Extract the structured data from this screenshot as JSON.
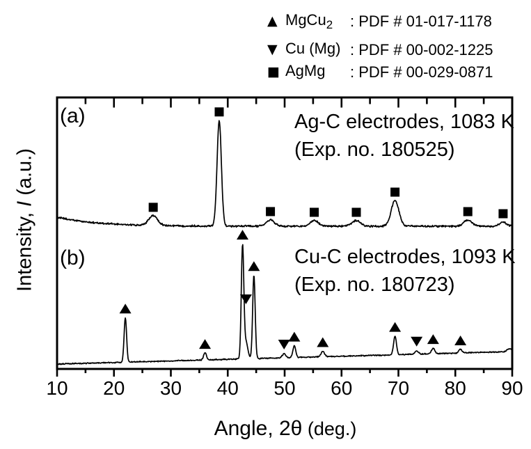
{
  "figure": {
    "background_color": "#ffffff",
    "ink_color": "#000000"
  },
  "legend": {
    "items": [
      {
        "icon": "triangle-up",
        "glyph": "▲",
        "phase": "MgCu",
        "phase_subscript": "2",
        "pdf_ref": ": PDF # 01-017-1178"
      },
      {
        "icon": "triangle-down",
        "glyph": "▼",
        "phase": "Cu (Mg)",
        "phase_subscript": "",
        "pdf_ref": ": PDF # 00-002-1225"
      },
      {
        "icon": "square",
        "glyph": "■",
        "phase": "AgMg",
        "phase_subscript": "",
        "pdf_ref": ": PDF # 00-029-0871"
      }
    ]
  },
  "chart_data": {
    "type": "line",
    "title": "",
    "xlabel": "Angle, 2θ (deg.)",
    "xlabel_parts": {
      "main": "Angle, 2θ",
      "unit": " (deg.)"
    },
    "ylabel": "Intensity, I (a.u.)",
    "ylabel_parts": {
      "prefix": "Intensity, ",
      "symbol_italic": "I",
      "suffix": " (a.u.)"
    },
    "xlim": [
      10,
      90
    ],
    "x_major_ticks": [
      10,
      20,
      30,
      40,
      50,
      60,
      70,
      80,
      90
    ],
    "x_minor_tick_step": 5,
    "y_ticks": "none (arbitrary units)",
    "grid": false,
    "series": [
      {
        "id": "a",
        "panel_label": "(a)",
        "annotation_line1": "Ag-C electrodes, 1083 K",
        "annotation_line2": "(Exp. no. 180525)",
        "phase": "AgMg",
        "marker": "square",
        "baseline_au": 205,
        "background_decay": {
          "amplitude_au": 13,
          "scale_deg": 7
        },
        "noise_au": 1.6,
        "peaks": [
          {
            "two_theta_deg": 26.9,
            "height_au": 14,
            "width_sigma_deg": 0.78,
            "marker": "square"
          },
          {
            "two_theta_deg": 38.5,
            "height_au": 152,
            "width_sigma_deg": 0.38,
            "marker": "square"
          },
          {
            "two_theta_deg": 47.5,
            "height_au": 9,
            "width_sigma_deg": 0.7,
            "marker": "square"
          },
          {
            "two_theta_deg": 55.2,
            "height_au": 8,
            "width_sigma_deg": 0.75,
            "marker": "square"
          },
          {
            "two_theta_deg": 62.6,
            "height_au": 8,
            "width_sigma_deg": 0.75,
            "marker": "square"
          },
          {
            "two_theta_deg": 69.4,
            "height_au": 37,
            "width_sigma_deg": 0.68,
            "marker": "square"
          },
          {
            "two_theta_deg": 82.2,
            "height_au": 9,
            "width_sigma_deg": 0.7,
            "marker": "square"
          },
          {
            "two_theta_deg": 88.4,
            "height_au": 6,
            "width_sigma_deg": 0.6,
            "marker": "square"
          }
        ]
      },
      {
        "id": "b",
        "panel_label": "(b)",
        "annotation_line1": "Cu-C electrodes, 1093 K",
        "annotation_line2": "(Exp. no. 180723)",
        "phase": "MgCu2, Cu (Mg)",
        "marker": "triangle-up",
        "baseline_start_au": 7,
        "baseline_end_au": 25,
        "noise_au": 1.0,
        "peaks": [
          {
            "two_theta_deg": 22.0,
            "height_au": 64,
            "width_sigma_deg": 0.22,
            "marker": "triangle-up"
          },
          {
            "two_theta_deg": 36.0,
            "height_au": 10,
            "width_sigma_deg": 0.25,
            "marker": "triangle-up"
          },
          {
            "two_theta_deg": 42.6,
            "height_au": 161,
            "width_sigma_deg": 0.22,
            "marker": "triangle-up"
          },
          {
            "two_theta_deg": 43.2,
            "height_au": 24,
            "width_sigma_deg": 0.33,
            "marker": "triangle-down",
            "marker_height_au": 100
          },
          {
            "two_theta_deg": 44.6,
            "height_au": 120,
            "width_sigma_deg": 0.22,
            "marker": "triangle-up"
          },
          {
            "two_theta_deg": 49.9,
            "height_au": 6,
            "width_sigma_deg": 0.3,
            "marker": "triangle-down"
          },
          {
            "two_theta_deg": 51.7,
            "height_au": 17,
            "width_sigma_deg": 0.25,
            "marker": "triangle-up"
          },
          {
            "two_theta_deg": 56.7,
            "height_au": 8,
            "width_sigma_deg": 0.3,
            "marker": "triangle-up"
          },
          {
            "two_theta_deg": 69.4,
            "height_au": 27,
            "width_sigma_deg": 0.25,
            "marker": "triangle-up"
          },
          {
            "two_theta_deg": 73.2,
            "height_au": 5,
            "width_sigma_deg": 0.3,
            "marker": "triangle-down"
          },
          {
            "two_theta_deg": 76.1,
            "height_au": 8,
            "width_sigma_deg": 0.28,
            "marker": "triangle-up"
          },
          {
            "two_theta_deg": 80.9,
            "height_au": 5,
            "width_sigma_deg": 0.3,
            "marker": "triangle-up"
          },
          {
            "two_theta_deg": 89.5,
            "height_au": 4,
            "width_sigma_deg": 0.4,
            "marker": "none"
          }
        ]
      }
    ]
  }
}
